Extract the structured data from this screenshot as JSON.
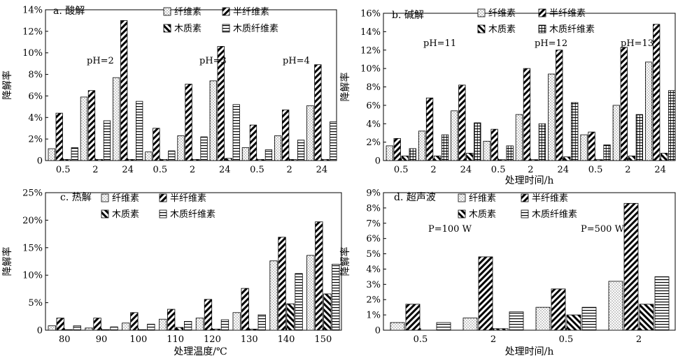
{
  "chart_data": [
    {
      "type": "bar",
      "panel_title": "a. 酸解",
      "xlabel": "",
      "ylabel": "降解率",
      "ylim": [
        0,
        14
      ],
      "yticks": [
        "0",
        "2%",
        "4%",
        "6%",
        "8%",
        "10%",
        "12%",
        "14%"
      ],
      "categories": [
        "0.5",
        "2",
        "24",
        "0.5",
        "2",
        "24",
        "0.5",
        "2",
        "24"
      ],
      "annotations": [
        "pH=2",
        "pH=3",
        "pH=4"
      ],
      "series": [
        {
          "name": "纤维素",
          "pattern": "dots",
          "values": [
            1.1,
            5.9,
            7.7,
            0.8,
            2.3,
            7.4,
            1.2,
            2.3,
            5.1
          ]
        },
        {
          "name": "半纤维素",
          "pattern": "diag",
          "values": [
            4.4,
            6.5,
            13.0,
            3.0,
            7.1,
            10.6,
            3.3,
            4.7,
            8.9
          ]
        },
        {
          "name": "木质素",
          "pattern": "diag-back",
          "values": [
            0.1,
            0.1,
            0.1,
            0.1,
            0.1,
            0.2,
            0.1,
            0.1,
            0.1
          ]
        },
        {
          "name": "木质纤维素",
          "pattern": "hlines",
          "values": [
            1.2,
            3.7,
            5.5,
            0.9,
            2.2,
            5.2,
            1.0,
            1.9,
            3.6
          ]
        }
      ]
    },
    {
      "type": "bar",
      "panel_title": "b. 碱解",
      "xlabel": "处理时间/h",
      "ylabel": "降解率",
      "ylim": [
        0,
        16
      ],
      "yticks": [
        "0",
        "2%",
        "4%",
        "6%",
        "8%",
        "10%",
        "12%",
        "14%",
        "16%"
      ],
      "categories": [
        "0.5",
        "2",
        "24",
        "0.5",
        "2",
        "24",
        "0.5",
        "2",
        "24"
      ],
      "annotations": [
        "pH=11",
        "pH=12",
        "pH=13"
      ],
      "series": [
        {
          "name": "纤维素",
          "pattern": "dots",
          "values": [
            1.6,
            3.2,
            5.4,
            2.1,
            5.0,
            9.4,
            2.8,
            6.0,
            10.7
          ]
        },
        {
          "name": "半纤维素",
          "pattern": "diag",
          "values": [
            2.4,
            6.8,
            8.2,
            3.4,
            10.0,
            12.0,
            3.1,
            12.3,
            14.8
          ]
        },
        {
          "name": "木质素",
          "pattern": "diag-back",
          "values": [
            0.5,
            0.5,
            0.8,
            0.1,
            0.1,
            0.4,
            0.1,
            0.5,
            0.8
          ]
        },
        {
          "name": "木质纤维素",
          "pattern": "vlines",
          "values": [
            1.3,
            2.8,
            4.1,
            1.6,
            4.0,
            6.3,
            1.7,
            5.0,
            7.6
          ]
        }
      ]
    },
    {
      "type": "bar",
      "panel_title": "c. 热解",
      "xlabel": "处理温度/℃",
      "ylabel": "降解率",
      "ylim": [
        0,
        25
      ],
      "yticks": [
        "0",
        "5%",
        "10%",
        "15%",
        "20%",
        "25%"
      ],
      "categories": [
        "80",
        "90",
        "100",
        "110",
        "120",
        "130",
        "140",
        "150"
      ],
      "annotations": [],
      "series": [
        {
          "name": "纤维素",
          "pattern": "dots",
          "values": [
            0.8,
            0.4,
            1.3,
            2.0,
            2.2,
            3.2,
            12.6,
            13.6
          ]
        },
        {
          "name": "半纤维素",
          "pattern": "diag",
          "values": [
            2.2,
            2.2,
            3.2,
            3.8,
            5.6,
            7.6,
            16.9,
            19.7
          ]
        },
        {
          "name": "木质素",
          "pattern": "diag-back",
          "values": [
            0.1,
            0.1,
            0.1,
            0.5,
            0.2,
            0.2,
            4.8,
            6.6
          ]
        },
        {
          "name": "木质纤维素",
          "pattern": "hlines",
          "values": [
            0.8,
            0.6,
            1.1,
            1.6,
            1.9,
            2.8,
            10.3,
            12.0
          ]
        }
      ]
    },
    {
      "type": "bar",
      "panel_title": "d. 超声波",
      "xlabel": "处理时间/h",
      "ylabel": "降解率",
      "ylim": [
        0,
        9
      ],
      "yticks": [
        "0",
        "1%",
        "2%",
        "3%",
        "4%",
        "5%",
        "6%",
        "7%",
        "8%",
        "9%"
      ],
      "categories": [
        "0.5",
        "2",
        "0.5",
        "2"
      ],
      "annotations": [
        "P=100 W",
        "P=500 W"
      ],
      "series": [
        {
          "name": "纤维素",
          "pattern": "dots",
          "values": [
            0.5,
            0.8,
            1.5,
            3.2
          ]
        },
        {
          "name": "半纤维素",
          "pattern": "diag",
          "values": [
            1.7,
            4.8,
            2.7,
            8.3
          ]
        },
        {
          "name": "木质素",
          "pattern": "diag-back",
          "values": [
            0.0,
            0.1,
            1.0,
            1.7
          ]
        },
        {
          "name": "木质纤维素",
          "pattern": "hlines",
          "values": [
            0.5,
            1.2,
            1.5,
            3.5
          ]
        }
      ]
    }
  ]
}
